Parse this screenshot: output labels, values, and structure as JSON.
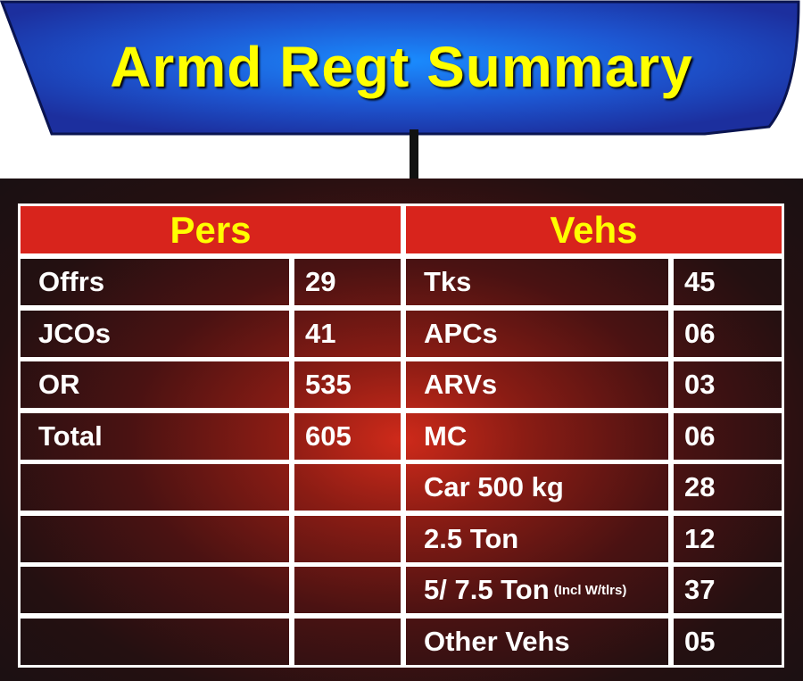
{
  "banner": {
    "title": "Armd Regt Summary"
  },
  "colors": {
    "banner_fill": "#1a3ab0",
    "banner_center": "#1a8cff",
    "title_text": "#ffff00",
    "header_fill": "#d8241c",
    "header_text": "#ffff00",
    "board_center": "#cf2a1a",
    "board_edge": "#1a1012",
    "cell_text": "#ffffff"
  },
  "pers": {
    "header": "Pers",
    "rows": [
      {
        "label": "Offrs",
        "value": "29"
      },
      {
        "label": "JCOs",
        "value": "41"
      },
      {
        "label": "OR",
        "value": "535"
      },
      {
        "label": "Total",
        "value": "605"
      },
      {
        "label": "",
        "value": ""
      },
      {
        "label": "",
        "value": ""
      },
      {
        "label": "",
        "value": ""
      },
      {
        "label": "",
        "value": ""
      }
    ]
  },
  "vehs": {
    "header": "Vehs",
    "rows": [
      {
        "label": "Tks",
        "note": "",
        "value": "45"
      },
      {
        "label": "APCs",
        "note": "",
        "value": "06"
      },
      {
        "label": "ARVs",
        "note": "",
        "value": "03"
      },
      {
        "label": "MC",
        "note": "",
        "value": "06"
      },
      {
        "label": "Car 500 kg",
        "note": "",
        "value": "28"
      },
      {
        "label": "2.5 Ton",
        "note": "",
        "value": "12"
      },
      {
        "label": "5/ 7.5 Ton",
        "note": "(Incl W/tlrs)",
        "value": "37"
      },
      {
        "label": "Other Vehs",
        "note": "",
        "value": "05"
      }
    ]
  }
}
